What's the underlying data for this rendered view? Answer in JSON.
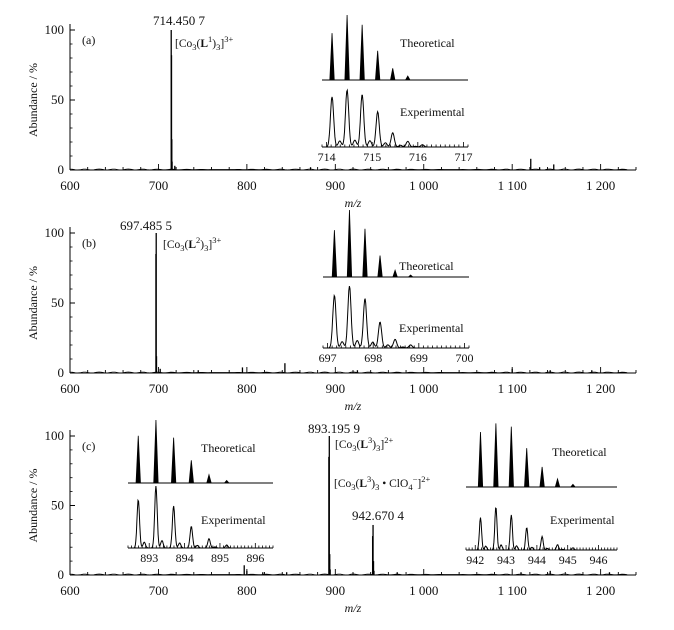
{
  "chart_data": [
    {
      "panel": "(a)",
      "type": "line",
      "ylabel": "Abundance / %",
      "xlabel": "m/z",
      "xlim": [
        600,
        1240
      ],
      "ylim": [
        0,
        100
      ],
      "x_ticks": [
        "600",
        "700",
        "800",
        "900",
        "1 000",
        "1 100",
        "1 200"
      ],
      "y_ticks": [
        "0",
        "50",
        "100"
      ],
      "peak_label": "714.450 7",
      "ion_label": [
        "[Co",
        "3",
        "(",
        "L",
        "1",
        ")",
        "3",
        "]",
        "3+"
      ],
      "peaks": [
        {
          "x": 714.45,
          "y": 100
        },
        {
          "x": 714.78,
          "y": 82
        },
        {
          "x": 715.1,
          "y": 22
        },
        {
          "x": 715.45,
          "y": 6
        },
        {
          "x": 718.5,
          "y": 3
        },
        {
          "x": 872,
          "y": 2
        },
        {
          "x": 1121,
          "y": 8
        },
        {
          "x": 1131,
          "y": 2
        },
        {
          "x": 1147,
          "y": 4
        }
      ],
      "inset": {
        "xlim": [
          713.9,
          717.1
        ],
        "x_ticks": [
          714,
          715,
          716,
          717
        ],
        "theoretical_label": "Theoretical",
        "experimental_label": "Experimental",
        "theoretical_peaks": [
          {
            "x": 714.12,
            "y": 0.72
          },
          {
            "x": 714.45,
            "y": 1.0
          },
          {
            "x": 714.78,
            "y": 0.85
          },
          {
            "x": 715.12,
            "y": 0.45
          },
          {
            "x": 715.45,
            "y": 0.18
          },
          {
            "x": 715.78,
            "y": 0.06
          }
        ],
        "experimental_peaks": [
          {
            "x": 714.12,
            "y": 0.88
          },
          {
            "x": 714.45,
            "y": 1.0
          },
          {
            "x": 714.78,
            "y": 0.92
          },
          {
            "x": 715.12,
            "y": 0.62
          },
          {
            "x": 715.45,
            "y": 0.25
          },
          {
            "x": 715.78,
            "y": 0.1
          },
          {
            "x": 716.1,
            "y": 0.04
          }
        ]
      }
    },
    {
      "panel": "(b)",
      "type": "line",
      "ylabel": "Abundance / %",
      "xlabel": "m/z",
      "xlim": [
        600,
        1240
      ],
      "ylim": [
        0,
        100
      ],
      "x_ticks": [
        "600",
        "700",
        "800",
        "900",
        "1 000",
        "1 100",
        "1 200"
      ],
      "y_ticks": [
        "0",
        "50",
        "100"
      ],
      "peak_label": "697.485 5",
      "ion_label": [
        "[Co",
        "3",
        "(",
        "L",
        "2",
        ")",
        "3",
        "]",
        "3+"
      ],
      "peaks": [
        {
          "x": 697.15,
          "y": 85
        },
        {
          "x": 697.48,
          "y": 100
        },
        {
          "x": 697.82,
          "y": 12
        },
        {
          "x": 702,
          "y": 3
        },
        {
          "x": 745,
          "y": 2
        },
        {
          "x": 795,
          "y": 4
        },
        {
          "x": 843,
          "y": 7
        },
        {
          "x": 925,
          "y": 2
        },
        {
          "x": 1100,
          "y": 3
        },
        {
          "x": 1143,
          "y": 2
        },
        {
          "x": 1190,
          "y": 2
        }
      ],
      "inset": {
        "xlim": [
          696.9,
          700.1
        ],
        "x_ticks": [
          697,
          698,
          699,
          700
        ],
        "theoretical_label": "Theoretical",
        "experimental_label": "Experimental",
        "theoretical_peaks": [
          {
            "x": 697.15,
            "y": 0.7
          },
          {
            "x": 697.48,
            "y": 1.0
          },
          {
            "x": 697.82,
            "y": 0.72
          },
          {
            "x": 698.15,
            "y": 0.32
          },
          {
            "x": 698.48,
            "y": 0.1
          },
          {
            "x": 698.82,
            "y": 0.03
          }
        ],
        "experimental_peaks": [
          {
            "x": 697.15,
            "y": 0.85
          },
          {
            "x": 697.48,
            "y": 1.0
          },
          {
            "x": 697.82,
            "y": 0.8
          },
          {
            "x": 698.15,
            "y": 0.42
          },
          {
            "x": 698.48,
            "y": 0.14
          },
          {
            "x": 698.82,
            "y": 0.05
          }
        ]
      }
    },
    {
      "panel": "(c)",
      "type": "line",
      "ylabel": "Abundance / %",
      "xlabel": "m/z",
      "xlim": [
        600,
        1240
      ],
      "ylim": [
        0,
        100
      ],
      "x_ticks": [
        "600",
        "700",
        "800",
        "900",
        "1 000",
        "1 100",
        "1 200"
      ],
      "y_ticks": [
        "0",
        "50",
        "100"
      ],
      "peak_label": "893.195 9",
      "ion_label": [
        "[Co",
        "3",
        "(",
        "L",
        "3",
        ")",
        "3",
        "]",
        "2+"
      ],
      "peak_label_2": "942.670 4",
      "ion_label_2": [
        "[Co",
        "3",
        "(",
        "L",
        "3",
        ")",
        "3",
        " • ClO",
        "4",
        "−",
        "]",
        "2+"
      ],
      "peaks": [
        {
          "x": 797,
          "y": 7
        },
        {
          "x": 800,
          "y": 3
        },
        {
          "x": 818,
          "y": 2
        },
        {
          "x": 845,
          "y": 2
        },
        {
          "x": 892.7,
          "y": 85
        },
        {
          "x": 893.2,
          "y": 100
        },
        {
          "x": 893.7,
          "y": 15
        },
        {
          "x": 894.2,
          "y": 4
        },
        {
          "x": 942.2,
          "y": 28
        },
        {
          "x": 942.67,
          "y": 36
        },
        {
          "x": 943.2,
          "y": 10
        },
        {
          "x": 943.7,
          "y": 3
        },
        {
          "x": 970,
          "y": 2
        },
        {
          "x": 1110,
          "y": 2
        },
        {
          "x": 1143,
          "y": 3
        },
        {
          "x": 1210,
          "y": 2
        }
      ],
      "inset_left": {
        "xlim": [
          892.4,
          896.5
        ],
        "x_ticks": [
          893,
          894,
          895,
          896
        ],
        "theoretical_label": "Theoretical",
        "experimental_label": "Experimental",
        "theoretical_peaks": [
          {
            "x": 892.69,
            "y": 0.75
          },
          {
            "x": 893.19,
            "y": 1.0
          },
          {
            "x": 893.69,
            "y": 0.72
          },
          {
            "x": 894.19,
            "y": 0.36
          },
          {
            "x": 894.69,
            "y": 0.13
          },
          {
            "x": 895.19,
            "y": 0.04
          }
        ],
        "experimental_peaks": [
          {
            "x": 892.69,
            "y": 0.78
          },
          {
            "x": 893.19,
            "y": 1.0
          },
          {
            "x": 893.69,
            "y": 0.68
          },
          {
            "x": 894.19,
            "y": 0.35
          },
          {
            "x": 894.69,
            "y": 0.15
          },
          {
            "x": 895.19,
            "y": 0.05
          }
        ]
      },
      "inset_right": {
        "xlim": [
          941.7,
          946.6
        ],
        "x_ticks": [
          942,
          943,
          944,
          945,
          946
        ],
        "theoretical_label": "Theoretical",
        "experimental_label": "Experimental",
        "theoretical_peaks": [
          {
            "x": 942.17,
            "y": 0.82
          },
          {
            "x": 942.67,
            "y": 0.95
          },
          {
            "x": 943.17,
            "y": 0.9
          },
          {
            "x": 943.67,
            "y": 0.58
          },
          {
            "x": 944.17,
            "y": 0.3
          },
          {
            "x": 944.67,
            "y": 0.12
          },
          {
            "x": 945.17,
            "y": 0.04
          }
        ],
        "experimental_peaks": [
          {
            "x": 942.17,
            "y": 0.72
          },
          {
            "x": 942.67,
            "y": 0.96
          },
          {
            "x": 943.17,
            "y": 0.78
          },
          {
            "x": 943.67,
            "y": 0.5
          },
          {
            "x": 944.17,
            "y": 0.3
          },
          {
            "x": 944.67,
            "y": 0.12
          },
          {
            "x": 945.17,
            "y": 0.05
          }
        ]
      }
    }
  ]
}
